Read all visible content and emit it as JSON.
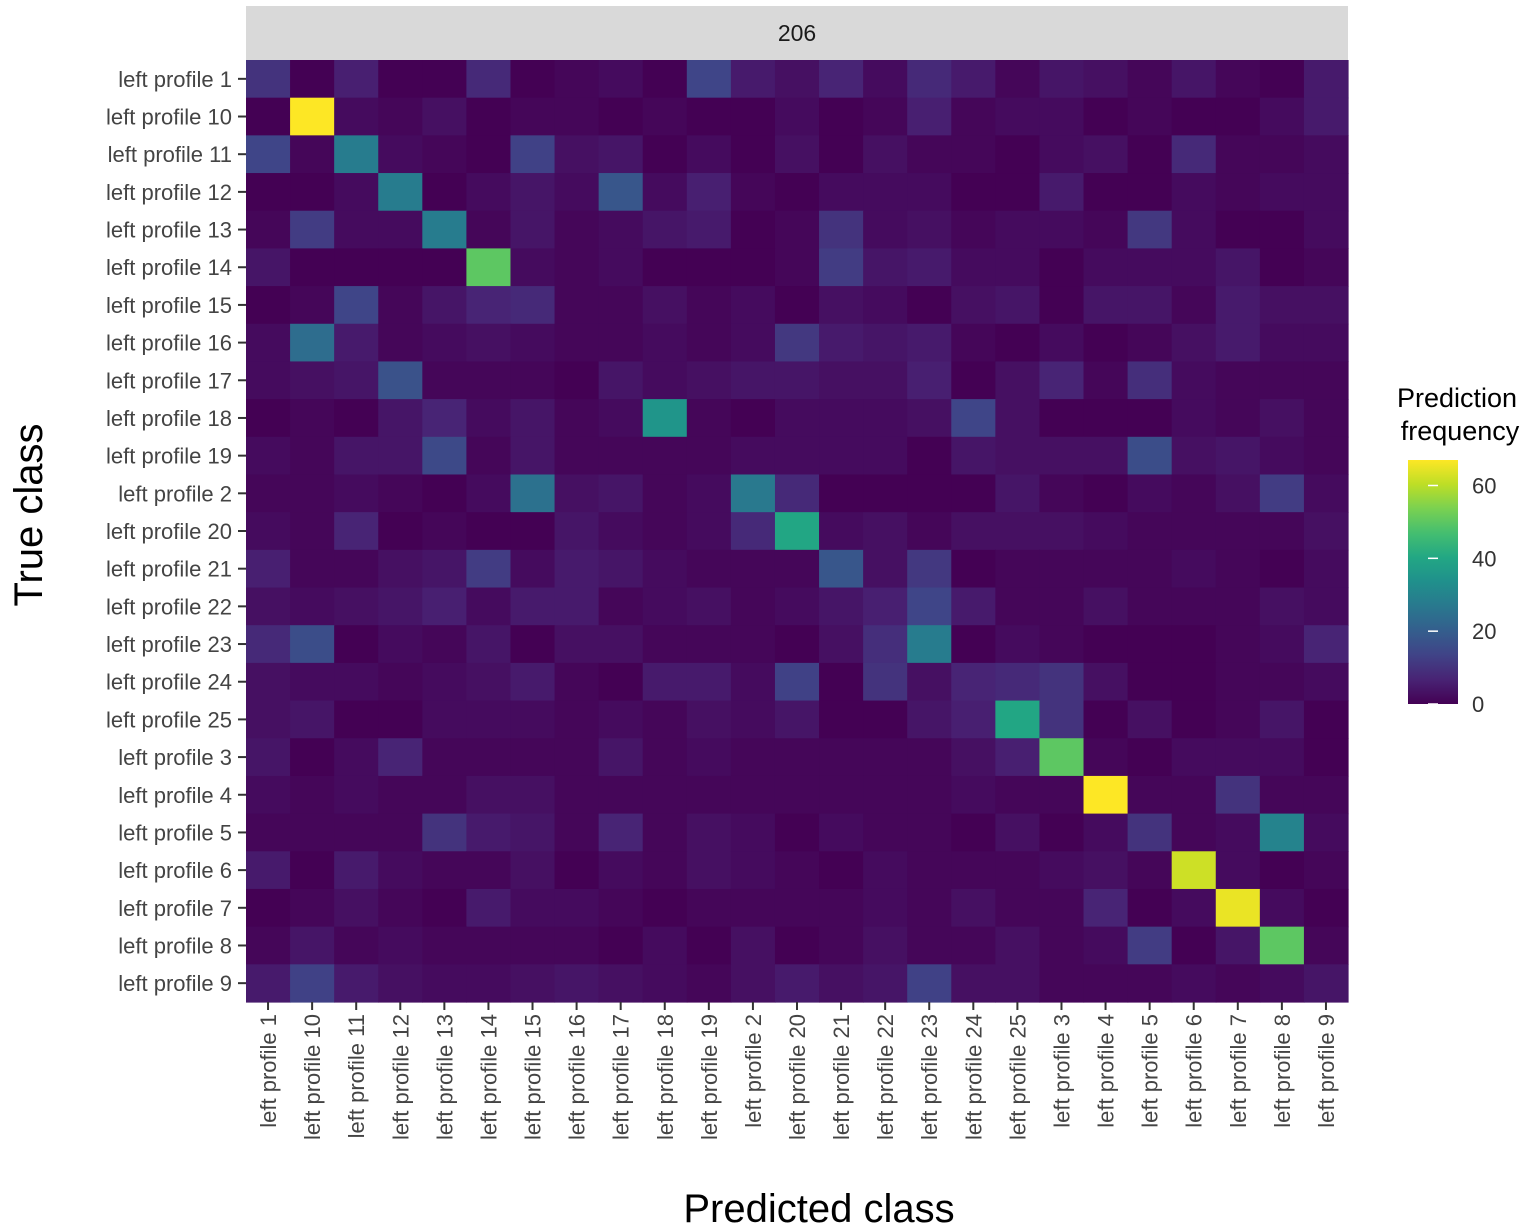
{
  "chart_data": {
    "type": "heatmap",
    "facet_label": "206",
    "xlabel": "Predicted class",
    "ylabel": "True class",
    "categories": [
      "left profile 1",
      "left profile 10",
      "left profile 11",
      "left profile 12",
      "left profile 13",
      "left profile 14",
      "left profile 15",
      "left profile 16",
      "left profile 17",
      "left profile 18",
      "left profile 19",
      "left profile 2",
      "left profile 20",
      "left profile 21",
      "left profile 22",
      "left profile 23",
      "left profile 24",
      "left profile 25",
      "left profile 3",
      "left profile 4",
      "left profile 5",
      "left profile 6",
      "left profile 7",
      "left profile 8",
      "left profile 9"
    ],
    "legend": {
      "title_line1": "Prediction",
      "title_line2": "frequency",
      "ticks": [
        0,
        20,
        40,
        60
      ],
      "min": 0,
      "max": 67,
      "colormap": "viridis"
    },
    "values": [
      [
        10,
        0,
        6,
        0,
        0,
        8,
        0,
        1,
        2,
        0,
        14,
        5,
        3,
        7,
        2,
        8,
        5,
        1,
        4,
        3,
        1,
        4,
        1,
        0,
        5
      ],
      [
        0,
        67,
        2,
        1,
        3,
        0,
        1,
        1,
        0,
        1,
        0,
        0,
        2,
        0,
        1,
        6,
        1,
        2,
        2,
        0,
        1,
        0,
        0,
        2,
        5
      ],
      [
        14,
        1,
        28,
        2,
        1,
        0,
        13,
        3,
        4,
        0,
        2,
        0,
        3,
        0,
        3,
        1,
        1,
        0,
        2,
        3,
        0,
        8,
        1,
        1,
        2
      ],
      [
        0,
        0,
        2,
        28,
        0,
        2,
        4,
        2,
        18,
        2,
        6,
        1,
        0,
        2,
        2,
        2,
        0,
        0,
        5,
        0,
        0,
        2,
        1,
        2,
        2
      ],
      [
        1,
        12,
        2,
        2,
        28,
        1,
        4,
        1,
        2,
        4,
        5,
        0,
        1,
        10,
        2,
        3,
        1,
        2,
        2,
        1,
        11,
        2,
        0,
        0,
        2
      ],
      [
        4,
        0,
        0,
        0,
        0,
        50,
        2,
        1,
        2,
        0,
        0,
        0,
        1,
        12,
        4,
        5,
        2,
        2,
        0,
        2,
        2,
        2,
        4,
        0,
        1
      ],
      [
        0,
        1,
        14,
        1,
        4,
        7,
        8,
        1,
        1,
        3,
        1,
        2,
        0,
        3,
        2,
        0,
        3,
        4,
        0,
        4,
        4,
        1,
        5,
        3,
        3
      ],
      [
        2,
        24,
        5,
        1,
        2,
        3,
        2,
        1,
        1,
        2,
        1,
        2,
        11,
        5,
        4,
        5,
        1,
        0,
        2,
        0,
        1,
        3,
        5,
        2,
        2
      ],
      [
        2,
        3,
        4,
        17,
        1,
        1,
        1,
        0,
        4,
        2,
        3,
        4,
        4,
        3,
        3,
        6,
        0,
        3,
        7,
        1,
        9,
        2,
        1,
        1,
        1
      ],
      [
        0,
        1,
        0,
        4,
        7,
        2,
        4,
        1,
        2,
        35,
        1,
        0,
        2,
        2,
        2,
        3,
        14,
        3,
        0,
        0,
        0,
        2,
        1,
        3,
        1
      ],
      [
        2,
        1,
        4,
        4,
        15,
        1,
        4,
        1,
        1,
        1,
        1,
        2,
        2,
        2,
        2,
        0,
        4,
        3,
        3,
        3,
        16,
        3,
        4,
        2,
        1
      ],
      [
        1,
        1,
        2,
        1,
        0,
        2,
        25,
        3,
        4,
        1,
        2,
        27,
        8,
        0,
        0,
        0,
        0,
        4,
        1,
        0,
        2,
        1,
        3,
        12,
        2
      ],
      [
        2,
        1,
        7,
        0,
        1,
        0,
        0,
        4,
        2,
        1,
        2,
        8,
        40,
        2,
        3,
        1,
        3,
        3,
        3,
        2,
        1,
        1,
        1,
        1,
        3
      ],
      [
        6,
        1,
        1,
        3,
        4,
        12,
        2,
        5,
        4,
        2,
        1,
        1,
        1,
        18,
        3,
        11,
        0,
        1,
        1,
        1,
        1,
        2,
        1,
        0,
        2
      ],
      [
        3,
        2,
        3,
        4,
        6,
        2,
        5,
        5,
        1,
        2,
        3,
        1,
        2,
        4,
        6,
        14,
        5,
        1,
        1,
        3,
        1,
        1,
        1,
        3,
        2
      ],
      [
        8,
        16,
        0,
        2,
        1,
        4,
        0,
        3,
        3,
        1,
        1,
        1,
        0,
        3,
        9,
        28,
        0,
        2,
        1,
        0,
        0,
        0,
        1,
        2,
        7
      ],
      [
        3,
        2,
        2,
        1,
        2,
        3,
        5,
        1,
        0,
        5,
        5,
        2,
        13,
        0,
        10,
        3,
        7,
        8,
        10,
        3,
        0,
        0,
        1,
        1,
        2
      ],
      [
        3,
        4,
        0,
        0,
        2,
        2,
        2,
        1,
        2,
        1,
        3,
        2,
        4,
        0,
        0,
        4,
        6,
        40,
        10,
        0,
        3,
        0,
        1,
        4,
        0
      ],
      [
        4,
        0,
        2,
        7,
        1,
        1,
        1,
        1,
        4,
        1,
        2,
        1,
        1,
        1,
        1,
        1,
        3,
        6,
        50,
        1,
        0,
        2,
        2,
        2,
        0
      ],
      [
        2,
        1,
        2,
        1,
        1,
        3,
        3,
        1,
        1,
        1,
        1,
        1,
        1,
        1,
        1,
        1,
        2,
        1,
        1,
        67,
        1,
        1,
        10,
        1,
        1
      ],
      [
        1,
        1,
        1,
        1,
        10,
        5,
        4,
        1,
        7,
        1,
        3,
        2,
        0,
        2,
        1,
        1,
        0,
        3,
        0,
        2,
        10,
        1,
        2,
        30,
        2
      ],
      [
        5,
        0,
        5,
        2,
        1,
        1,
        3,
        0,
        2,
        1,
        3,
        2,
        1,
        0,
        2,
        1,
        1,
        1,
        2,
        3,
        1,
        62,
        2,
        0,
        1
      ],
      [
        0,
        1,
        3,
        1,
        0,
        5,
        2,
        2,
        1,
        0,
        1,
        1,
        1,
        1,
        2,
        1,
        3,
        1,
        1,
        7,
        0,
        2,
        65,
        2,
        0
      ],
      [
        1,
        4,
        1,
        2,
        1,
        1,
        1,
        1,
        0,
        2,
        0,
        3,
        0,
        1,
        3,
        1,
        1,
        3,
        1,
        2,
        12,
        0,
        4,
        50,
        1
      ],
      [
        5,
        13,
        5,
        3,
        2,
        2,
        3,
        4,
        3,
        2,
        1,
        3,
        5,
        3,
        4,
        13,
        3,
        3,
        1,
        1,
        1,
        2,
        1,
        2,
        4
      ]
    ]
  }
}
